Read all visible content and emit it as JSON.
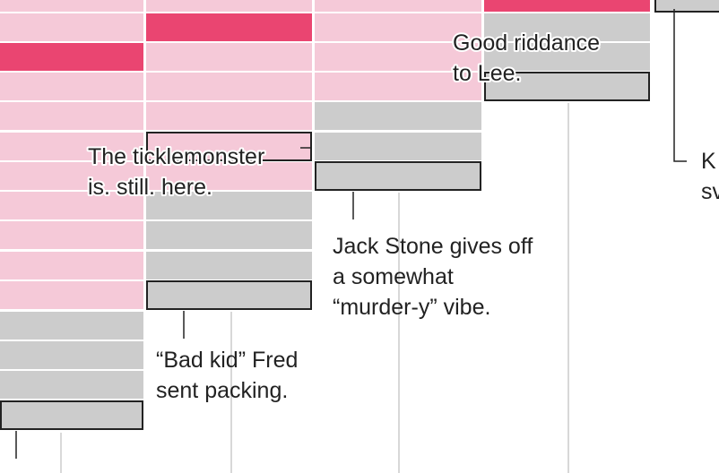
{
  "annotations": [
    {
      "lines": [
        "Good riddance",
        "to Lee."
      ]
    },
    {
      "lines": [
        "The ticklemonster",
        "is. still. here."
      ]
    },
    {
      "lines": [
        "Jack Stone gives off",
        "a somewhat",
        "“murder-y” vibe."
      ]
    },
    {
      "lines": [
        "“Bad kid” Fred",
        "sent packing."
      ]
    },
    {
      "lines": [
        "K",
        "sv"
      ]
    }
  ]
}
